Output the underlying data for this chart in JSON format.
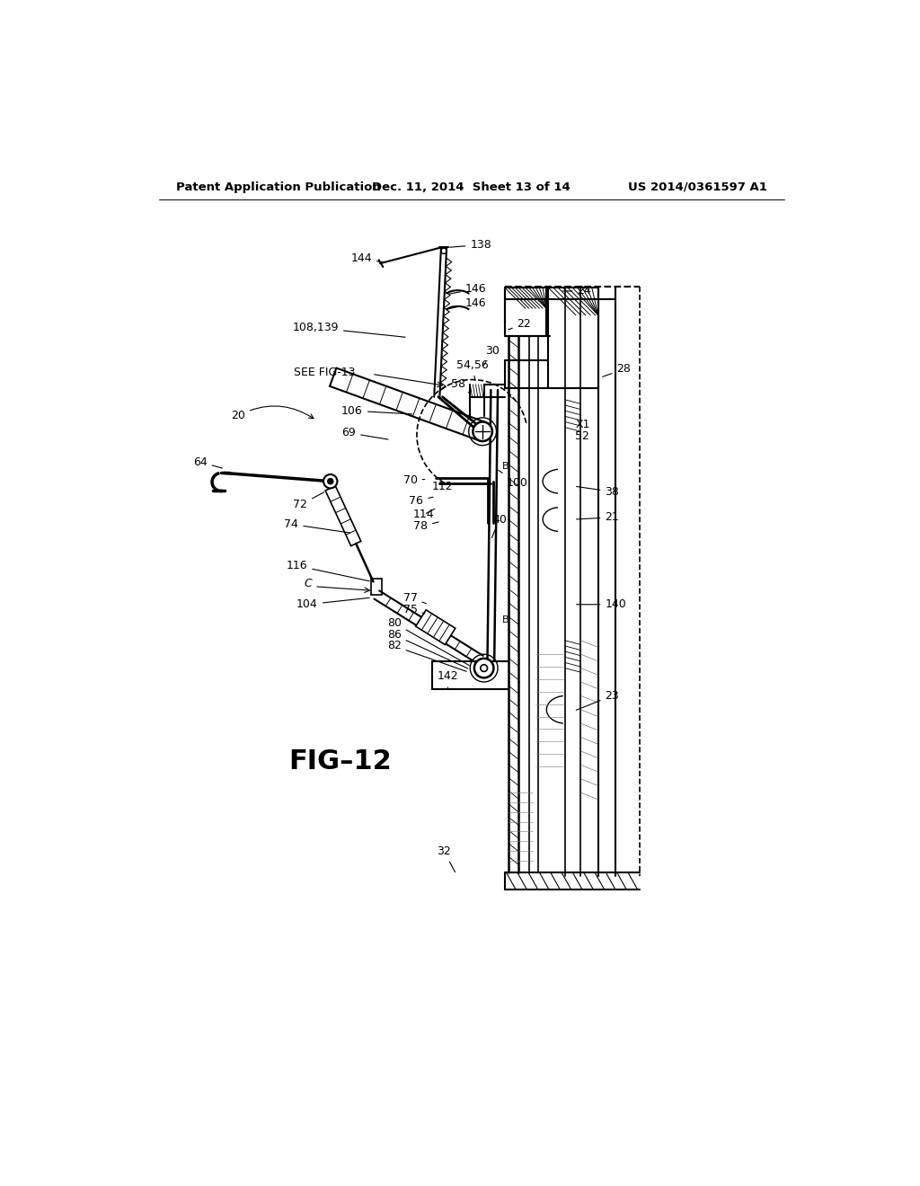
{
  "bg_color": "#ffffff",
  "header_left": "Patent Application Publication",
  "header_center": "Dec. 11, 2014  Sheet 13 of 14",
  "header_right": "US 2014/0361597 A1",
  "figure_label": "FIG–12"
}
